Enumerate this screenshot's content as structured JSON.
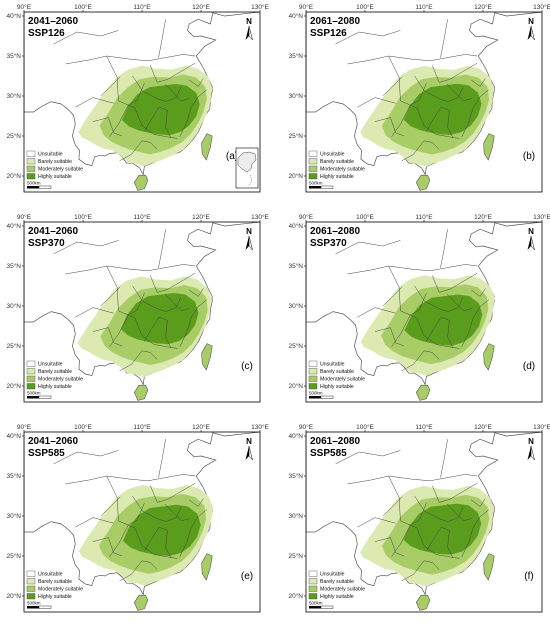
{
  "ticks": {
    "lon": [
      "90°E",
      "100°E",
      "110°E",
      "120°E",
      "130°E"
    ],
    "lat": [
      "40°N",
      "35°N",
      "30°N",
      "25°N",
      "20°N"
    ]
  },
  "legend": {
    "items": [
      {
        "label": "Unsuitable",
        "color": "#ffffff"
      },
      {
        "label": "Barely suitable",
        "color": "#dceab2"
      },
      {
        "label": "Moderately suitable",
        "color": "#a8cd66"
      },
      {
        "label": "Highly suitable",
        "color": "#5a9c1c"
      }
    ],
    "scale_label": "500km"
  },
  "north_label": "N",
  "panels": [
    {
      "period": "2041–2060",
      "scenario": "SSP126",
      "label": "(a)",
      "level": 0.4
    },
    {
      "period": "2061–2080",
      "scenario": "SSP126",
      "label": "(b)",
      "level": 0.38
    },
    {
      "period": "2041–2060",
      "scenario": "SSP370",
      "label": "(c)",
      "level": 0.3
    },
    {
      "period": "2061–2080",
      "scenario": "SSP370",
      "label": "(d)",
      "level": 0.45
    },
    {
      "period": "2041–2060",
      "scenario": "SSP585",
      "label": "(e)",
      "level": 0.48
    },
    {
      "period": "2061–2080",
      "scenario": "SSP585",
      "label": "(f)",
      "level": 0.36
    }
  ]
}
